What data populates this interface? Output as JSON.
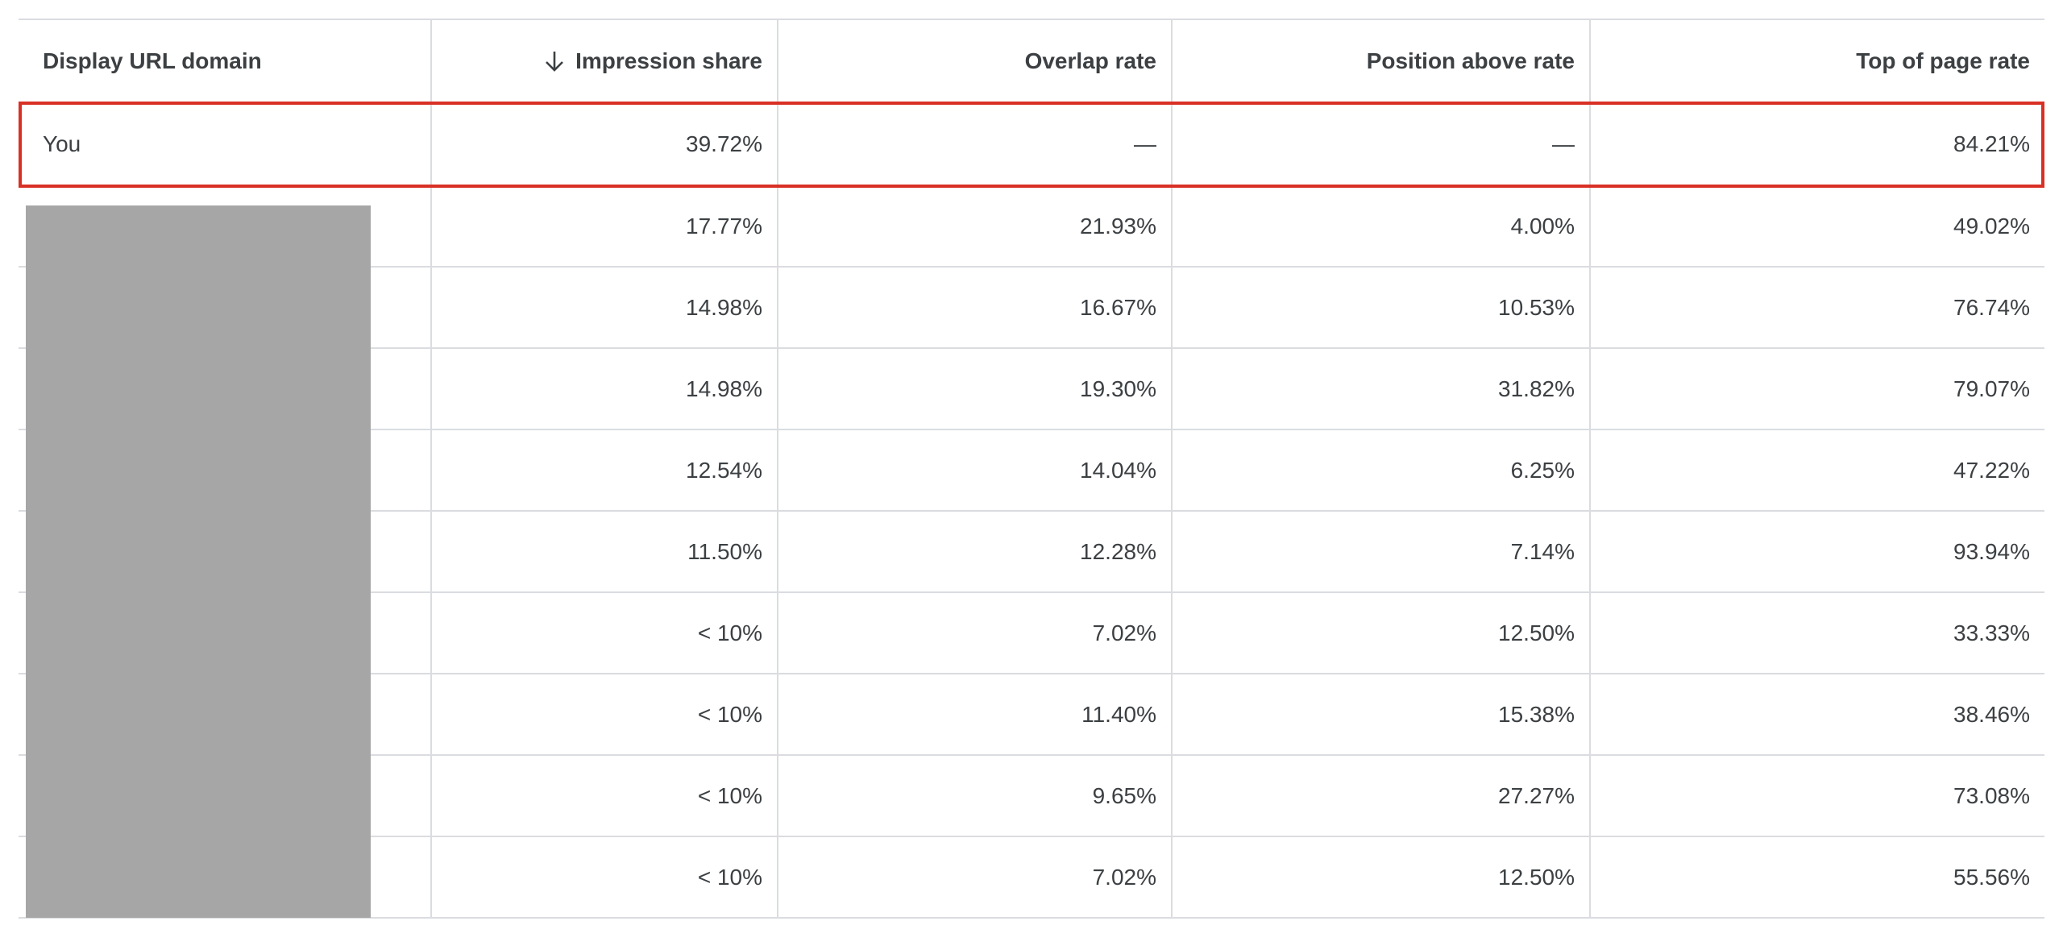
{
  "table": {
    "headers": [
      {
        "label": "Display URL domain",
        "sortable": false
      },
      {
        "label": "Impression share",
        "sorted": "descending",
        "sort_icon": "arrow-down-icon"
      },
      {
        "label": "Overlap rate"
      },
      {
        "label": "Position above rate"
      },
      {
        "label": "Top of page rate"
      }
    ],
    "rows": [
      {
        "domain": "You",
        "impression_share": "39.72%",
        "overlap_rate": "—",
        "position_above_rate": "—",
        "top_of_page_rate": "84.21%",
        "highlighted": true
      },
      {
        "domain": "",
        "impression_share": "17.77%",
        "overlap_rate": "21.93%",
        "position_above_rate": "4.00%",
        "top_of_page_rate": "49.02%"
      },
      {
        "domain": "",
        "impression_share": "14.98%",
        "overlap_rate": "16.67%",
        "position_above_rate": "10.53%",
        "top_of_page_rate": "76.74%"
      },
      {
        "domain": "",
        "impression_share": "14.98%",
        "overlap_rate": "19.30%",
        "position_above_rate": "31.82%",
        "top_of_page_rate": "79.07%"
      },
      {
        "domain": "",
        "impression_share": "12.54%",
        "overlap_rate": "14.04%",
        "position_above_rate": "6.25%",
        "top_of_page_rate": "47.22%"
      },
      {
        "domain": "",
        "impression_share": "11.50%",
        "overlap_rate": "12.28%",
        "position_above_rate": "7.14%",
        "top_of_page_rate": "93.94%"
      },
      {
        "domain": "",
        "impression_share": "< 10%",
        "overlap_rate": "7.02%",
        "position_above_rate": "12.50%",
        "top_of_page_rate": "33.33%"
      },
      {
        "domain": "",
        "impression_share": "< 10%",
        "overlap_rate": "11.40%",
        "position_above_rate": "15.38%",
        "top_of_page_rate": "38.46%"
      },
      {
        "domain": "",
        "impression_share": "< 10%",
        "overlap_rate": "9.65%",
        "position_above_rate": "27.27%",
        "top_of_page_rate": "73.08%"
      },
      {
        "domain": "",
        "impression_share": "< 10%",
        "overlap_rate": "7.02%",
        "position_above_rate": "12.50%",
        "top_of_page_rate": "55.56%"
      }
    ]
  },
  "colors": {
    "highlight_border": "#d93025",
    "redaction": "#a6a6a6",
    "grid": "#dadce0",
    "text": "#3c4043"
  }
}
